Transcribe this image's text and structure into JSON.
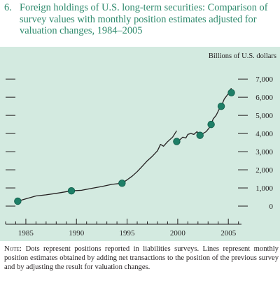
{
  "figure": {
    "number": "6.",
    "title": "Foreign holdings of U.S. long-term securities: Comparison of survey values with monthly position estimates adjusted for valuation changes, 1984–2005"
  },
  "chart_data": {
    "type": "line",
    "unit_label": "Billions of U.S. dollars",
    "xlim": [
      1983,
      2006.3
    ],
    "ylim": [
      -1000,
      7700
    ],
    "x_ticks": [
      1985,
      1990,
      1995,
      2000,
      2005
    ],
    "y_ticks": [
      0,
      1000,
      2000,
      3000,
      4000,
      5000,
      6000,
      7000
    ],
    "x_tick_labels": [
      "1985",
      "1990",
      "1995",
      "2000",
      "2005"
    ],
    "y_tick_labels": [
      "0",
      "1,000",
      "2,000",
      "3,000",
      "4,000",
      "5,000",
      "6,000",
      "7,000"
    ],
    "grid": false,
    "colors": {
      "line": "#231f20",
      "dot": "#1e7f67",
      "dot_stroke": "#0d5a47",
      "background": "#d3eae0",
      "title": "#2e8a6c"
    },
    "series": [
      {
        "kind": "line",
        "x": [
          1984.2,
          1985.0,
          1986.0,
          1987.0,
          1988.0,
          1989.5
        ],
        "y": [
          270,
          400,
          560,
          620,
          700,
          840
        ]
      },
      {
        "kind": "line",
        "x": [
          1989.5,
          1990.5,
          1991.5,
          1992.5,
          1993.5,
          1994.5
        ],
        "y": [
          840,
          870,
          980,
          1080,
          1200,
          1260
        ]
      },
      {
        "kind": "line",
        "x": [
          1994.5,
          1995.0,
          1995.5,
          1996.0,
          1996.5,
          1997.0,
          1997.5,
          1998.0,
          1998.3,
          1998.6,
          1999.0,
          1999.5,
          1999.9
        ],
        "y": [
          1260,
          1450,
          1650,
          1900,
          2200,
          2500,
          2750,
          3050,
          3400,
          3300,
          3550,
          3800,
          4150
        ]
      },
      {
        "kind": "line",
        "x": [
          1999.9,
          2000.2,
          2000.5,
          2000.8,
          2001.0,
          2001.3,
          2001.6,
          2001.9,
          2002.2
        ],
        "y": [
          3560,
          3650,
          3800,
          3750,
          3950,
          4000,
          3950,
          4100,
          3900
        ]
      },
      {
        "kind": "line",
        "x": [
          2002.2,
          2002.5,
          2002.8,
          2003.1,
          2003.3
        ],
        "y": [
          3900,
          4000,
          4100,
          4300,
          4500
        ]
      },
      {
        "kind": "line",
        "x": [
          2003.3,
          2003.5,
          2003.8,
          2004.1,
          2004.3
        ],
        "y": [
          4500,
          4800,
          5000,
          5350,
          5500
        ]
      },
      {
        "kind": "line",
        "x": [
          2004.3,
          2004.6,
          2005.0,
          2005.3
        ],
        "y": [
          5500,
          5900,
          6200,
          6500
        ]
      },
      {
        "kind": "dots",
        "x": [
          1984.2,
          1989.5,
          1994.5,
          1999.9,
          2002.2,
          2003.3,
          2004.3,
          2005.3
        ],
        "y": [
          270,
          840,
          1260,
          3560,
          3900,
          4500,
          5500,
          6250
        ]
      }
    ]
  },
  "note": {
    "label": "Note:",
    "text": "Dots represent positions reported in liabilities surveys. Lines represent monthly position estimates obtained by adding net transactions to the position of the previous survey and by adjusting the result for valuation changes."
  }
}
